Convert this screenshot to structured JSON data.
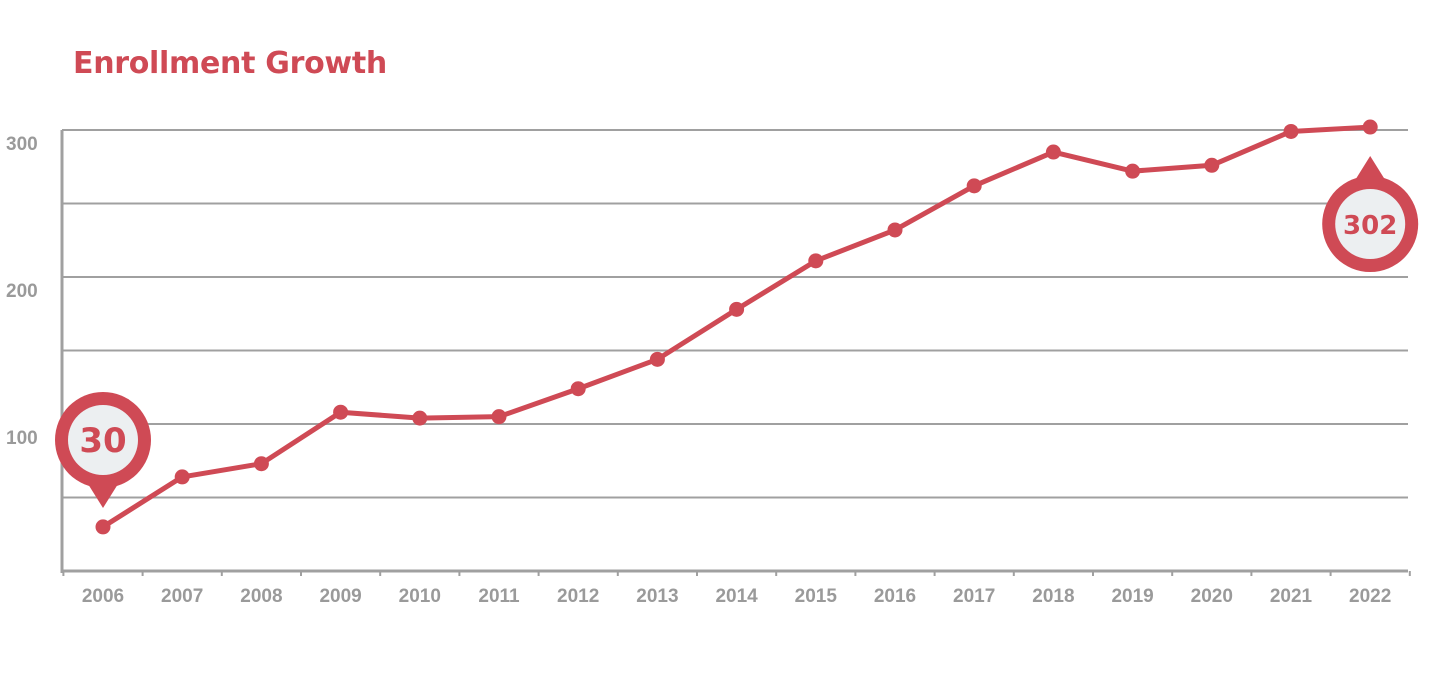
{
  "colors": {
    "accent": "#cf4a55",
    "grid": "#a0a0a0",
    "tick_text": "#9a9a9a",
    "callout_fill": "#eceff1"
  },
  "chart_data": {
    "type": "line",
    "title": "Enrollment Growth",
    "xlabel": "",
    "ylabel": "",
    "categories": [
      "2006",
      "2007",
      "2008",
      "2009",
      "2010",
      "2011",
      "2012",
      "2013",
      "2014",
      "2015",
      "2016",
      "2017",
      "2018",
      "2019",
      "2020",
      "2021",
      "2022"
    ],
    "series": [
      {
        "values": [
          30,
          64,
          73,
          108,
          104,
          105,
          124,
          144,
          178,
          211,
          232,
          262,
          285,
          272,
          276,
          299,
          302
        ]
      }
    ],
    "y_ticks": [
      "100",
      "200",
      "300"
    ],
    "ylim": [
      0,
      300
    ],
    "grid": true,
    "callouts": [
      {
        "category": "2006",
        "label": "30",
        "pointer": "down"
      },
      {
        "category": "2022",
        "label": "302",
        "pointer": "up"
      }
    ]
  }
}
